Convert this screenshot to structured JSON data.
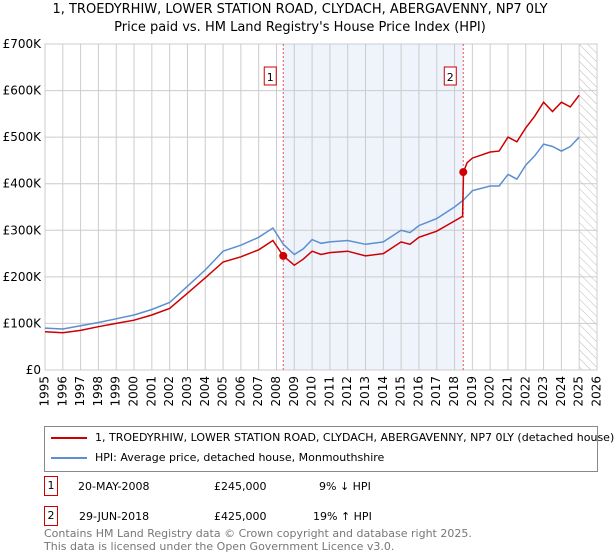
{
  "chart_data": {
    "type": "line",
    "title": "1, TROEDYRHIW, LOWER STATION ROAD, CLYDACH, ABERGAVENNY, NP7 0LY",
    "subtitle": "Price paid vs. HM Land Registry's House Price Index (HPI)",
    "xlim": [
      1995,
      2026
    ],
    "ylim": [
      0,
      700000
    ],
    "x_ticks": [
      "1995",
      "1996",
      "1997",
      "1998",
      "1999",
      "2000",
      "2001",
      "2002",
      "2003",
      "2004",
      "2005",
      "2006",
      "2007",
      "2008",
      "2009",
      "2010",
      "2011",
      "2012",
      "2013",
      "2014",
      "2015",
      "2016",
      "2017",
      "2018",
      "2019",
      "2020",
      "2021",
      "2022",
      "2023",
      "2024",
      "2025",
      "2026"
    ],
    "y_ticks": [
      {
        "v": 0,
        "label": "£0"
      },
      {
        "v": 100000,
        "label": "£100K"
      },
      {
        "v": 200000,
        "label": "£200K"
      },
      {
        "v": 300000,
        "label": "£300K"
      },
      {
        "v": 400000,
        "label": "£400K"
      },
      {
        "v": 500000,
        "label": "£500K"
      },
      {
        "v": 600000,
        "label": "£600K"
      },
      {
        "v": 700000,
        "label": "£700K"
      }
    ],
    "grid": true,
    "shaded_range": [
      2008.38,
      2018.49
    ],
    "hatched_from": 2025.0,
    "series": [
      {
        "name": "1, TROEDYRHIW, LOWER STATION ROAD, CLYDACH, ABERGAVENNY, NP7 0LY (detached house)",
        "color": "#cc0000",
        "x": [
          1995,
          1996,
          1997,
          1998,
          1999,
          2000,
          2001,
          2002,
          2003,
          2004,
          2005,
          2006,
          2007,
          2007.8,
          2008.38,
          2009,
          2009.5,
          2010,
          2010.5,
          2011,
          2012,
          2013,
          2014,
          2015,
          2015.5,
          2016,
          2017,
          2018,
          2018.45,
          2018.5,
          2018.7,
          2019,
          2020,
          2020.5,
          2021,
          2021.5,
          2022,
          2022.5,
          2023,
          2023.5,
          2024,
          2024.5,
          2025
        ],
        "y": [
          82000,
          80000,
          85000,
          93000,
          100000,
          107000,
          118000,
          132000,
          165000,
          198000,
          232000,
          243000,
          258000,
          278000,
          245000,
          225000,
          238000,
          255000,
          248000,
          252000,
          255000,
          245000,
          250000,
          275000,
          270000,
          285000,
          298000,
          320000,
          330000,
          425000,
          445000,
          455000,
          468000,
          470000,
          500000,
          490000,
          520000,
          545000,
          575000,
          555000,
          575000,
          565000,
          590000
        ]
      },
      {
        "name": "HPI: Average price, detached house, Monmouthshire",
        "color": "#5b8fd0",
        "x": [
          1995,
          1996,
          1997,
          1998,
          1999,
          2000,
          2001,
          2002,
          2003,
          2004,
          2005,
          2006,
          2007,
          2007.8,
          2008.38,
          2009,
          2009.5,
          2010,
          2010.5,
          2011,
          2012,
          2013,
          2014,
          2015,
          2015.5,
          2016,
          2017,
          2018,
          2018.5,
          2019,
          2020,
          2020.5,
          2021,
          2021.5,
          2022,
          2022.5,
          2023,
          2023.5,
          2024,
          2024.5,
          2025
        ],
        "y": [
          90000,
          88000,
          95000,
          102000,
          110000,
          118000,
          130000,
          145000,
          180000,
          215000,
          255000,
          268000,
          285000,
          305000,
          270000,
          248000,
          260000,
          280000,
          272000,
          275000,
          278000,
          270000,
          275000,
          300000,
          295000,
          310000,
          325000,
          350000,
          365000,
          385000,
          395000,
          395000,
          420000,
          410000,
          440000,
          460000,
          485000,
          480000,
          470000,
          480000,
          500000
        ]
      }
    ],
    "sales": [
      {
        "id": "1",
        "x": 2008.38,
        "y": 245000
      },
      {
        "id": "2",
        "x": 2018.49,
        "y": 425000
      }
    ]
  },
  "legend": {
    "red": "1, TROEDYRHIW, LOWER STATION ROAD, CLYDACH, ABERGAVENNY, NP7 0LY (detached house)",
    "blue": "HPI: Average price, detached house, Monmouthshire"
  },
  "table": [
    {
      "id": "1",
      "date": "20-MAY-2008",
      "price": "£245,000",
      "hpi": "9% ↓ HPI"
    },
    {
      "id": "2",
      "date": "29-JUN-2018",
      "price": "£425,000",
      "hpi": "19% ↑ HPI"
    }
  ],
  "footer": {
    "line1": "Contains HM Land Registry data © Crown copyright and database right 2025.",
    "line2": "This data is licensed under the Open Government Licence v3.0."
  }
}
